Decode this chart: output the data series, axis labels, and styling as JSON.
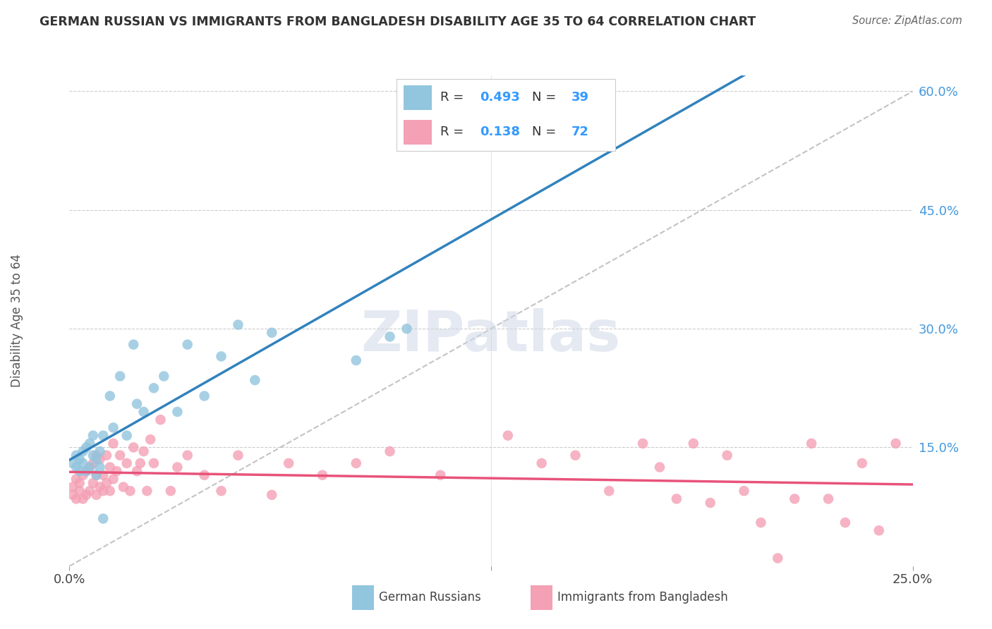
{
  "title": "GERMAN RUSSIAN VS IMMIGRANTS FROM BANGLADESH DISABILITY AGE 35 TO 64 CORRELATION CHART",
  "source": "Source: ZipAtlas.com",
  "ylabel": "Disability Age 35 to 64",
  "xlim": [
    0.0,
    0.25
  ],
  "ylim": [
    0.0,
    0.62
  ],
  "y_ticks": [
    0.15,
    0.3,
    0.45,
    0.6
  ],
  "y_tick_labels": [
    "15.0%",
    "30.0%",
    "45.0%",
    "60.0%"
  ],
  "x_tick_labels": [
    "0.0%",
    "25.0%"
  ],
  "blue_color": "#92c5de",
  "pink_color": "#f4a0b5",
  "blue_line_color": "#3182bd",
  "pink_line_color": "#e8537a",
  "watermark": "ZIPatlas",
  "legend_r1_val": "0.493",
  "legend_n1_val": "39",
  "legend_r2_val": "0.138",
  "legend_n2_val": "72",
  "german_russians_x": [
    0.001,
    0.002,
    0.002,
    0.003,
    0.003,
    0.004,
    0.004,
    0.005,
    0.005,
    0.006,
    0.006,
    0.007,
    0.007,
    0.008,
    0.008,
    0.009,
    0.009,
    0.01,
    0.01,
    0.012,
    0.013,
    0.015,
    0.017,
    0.019,
    0.02,
    0.022,
    0.025,
    0.028,
    0.032,
    0.035,
    0.04,
    0.045,
    0.05,
    0.055,
    0.06,
    0.085,
    0.095,
    0.1,
    0.115
  ],
  "german_russians_y": [
    0.13,
    0.14,
    0.125,
    0.135,
    0.12,
    0.145,
    0.13,
    0.15,
    0.12,
    0.155,
    0.125,
    0.14,
    0.165,
    0.135,
    0.115,
    0.145,
    0.125,
    0.165,
    0.06,
    0.215,
    0.175,
    0.24,
    0.165,
    0.28,
    0.205,
    0.195,
    0.225,
    0.24,
    0.195,
    0.28,
    0.215,
    0.265,
    0.305,
    0.235,
    0.295,
    0.26,
    0.29,
    0.3,
    0.54
  ],
  "bangladesh_x": [
    0.001,
    0.001,
    0.002,
    0.002,
    0.003,
    0.003,
    0.004,
    0.004,
    0.005,
    0.005,
    0.006,
    0.006,
    0.007,
    0.007,
    0.008,
    0.008,
    0.008,
    0.009,
    0.009,
    0.01,
    0.01,
    0.011,
    0.011,
    0.012,
    0.012,
    0.013,
    0.013,
    0.014,
    0.015,
    0.016,
    0.017,
    0.018,
    0.019,
    0.02,
    0.021,
    0.022,
    0.023,
    0.024,
    0.025,
    0.027,
    0.03,
    0.032,
    0.035,
    0.04,
    0.045,
    0.05,
    0.06,
    0.065,
    0.075,
    0.085,
    0.095,
    0.11,
    0.13,
    0.14,
    0.15,
    0.16,
    0.17,
    0.175,
    0.18,
    0.185,
    0.19,
    0.195,
    0.2,
    0.205,
    0.21,
    0.215,
    0.22,
    0.225,
    0.23,
    0.235,
    0.24,
    0.245
  ],
  "bangladesh_y": [
    0.1,
    0.09,
    0.085,
    0.11,
    0.095,
    0.105,
    0.115,
    0.085,
    0.12,
    0.09,
    0.125,
    0.095,
    0.105,
    0.13,
    0.115,
    0.14,
    0.09,
    0.1,
    0.135,
    0.115,
    0.095,
    0.14,
    0.105,
    0.125,
    0.095,
    0.11,
    0.155,
    0.12,
    0.14,
    0.1,
    0.13,
    0.095,
    0.15,
    0.12,
    0.13,
    0.145,
    0.095,
    0.16,
    0.13,
    0.185,
    0.095,
    0.125,
    0.14,
    0.115,
    0.095,
    0.14,
    0.09,
    0.13,
    0.115,
    0.13,
    0.145,
    0.115,
    0.165,
    0.13,
    0.14,
    0.095,
    0.155,
    0.125,
    0.085,
    0.155,
    0.08,
    0.14,
    0.095,
    0.055,
    0.01,
    0.085,
    0.155,
    0.085,
    0.055,
    0.13,
    0.045,
    0.155
  ]
}
